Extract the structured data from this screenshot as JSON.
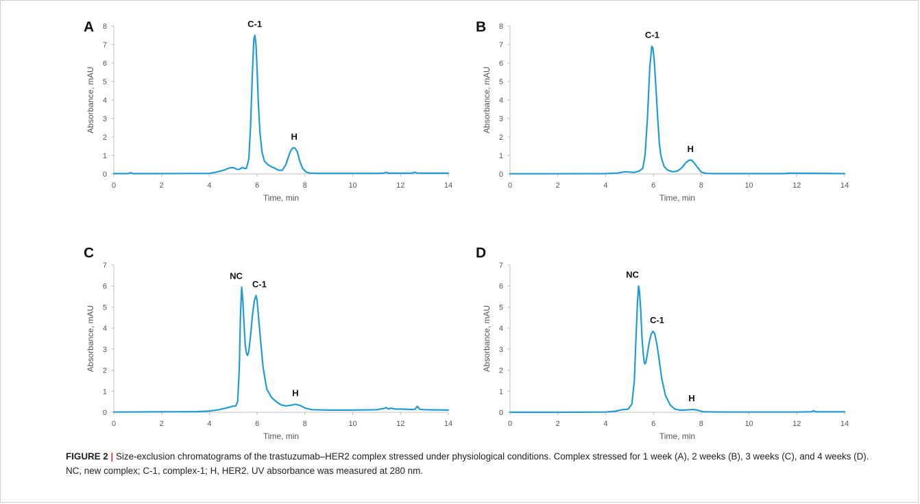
{
  "colors": {
    "trace": "#1f9bd7",
    "axis": "#bfbfbf",
    "text": "#111111",
    "tick": "#555555"
  },
  "caption": {
    "label": "FIGURE 2",
    "separator": "|",
    "text": " Size-exclusion chromatograms of the trastuzumab–HER2 complex stressed under physiological conditions. Complex stressed for 1 week (A), 2 weeks (B), 3 weeks (C), and 4 weeks (D). NC, new complex; C-1, complex-1; H, HER2. UV absorbance was measured at 280 nm."
  },
  "chart_data": [
    {
      "panel": "A",
      "type": "line",
      "xlabel": "Time, min",
      "ylabel": "Absorbance, mAU",
      "xlim": [
        0,
        14
      ],
      "ylim": [
        0,
        8
      ],
      "xticks": [
        0,
        2,
        4,
        6,
        8,
        10,
        12,
        14
      ],
      "yticks": [
        0,
        1,
        2,
        3,
        4,
        5,
        6,
        7,
        8
      ],
      "grid": false,
      "peak_labels": [
        {
          "text": "C-1",
          "x": 5.9,
          "y": 7.5
        },
        {
          "text": "H",
          "x": 7.55,
          "y": 1.4
        }
      ],
      "series": [
        {
          "x": [
            0,
            0.6,
            0.7,
            0.8,
            2,
            4,
            4.3,
            4.6,
            4.85,
            5.0,
            5.15,
            5.25,
            5.38,
            5.45,
            5.55,
            5.65,
            5.72,
            5.8,
            5.86,
            5.9,
            5.95,
            6.0,
            6.05,
            6.12,
            6.2,
            6.3,
            6.45,
            6.6,
            6.75,
            6.9,
            7.05,
            7.2,
            7.3,
            7.4,
            7.5,
            7.58,
            7.68,
            7.78,
            7.9,
            8.05,
            8.2,
            8.5,
            9,
            10,
            11,
            11.3,
            11.4,
            11.5,
            12,
            12.5,
            12.6,
            12.7,
            13,
            14
          ],
          "y": [
            0.02,
            0.02,
            0.07,
            0.02,
            0.02,
            0.03,
            0.1,
            0.2,
            0.33,
            0.35,
            0.25,
            0.25,
            0.35,
            0.3,
            0.3,
            0.8,
            2.5,
            5.5,
            7.3,
            7.5,
            7.0,
            5.6,
            3.8,
            2.2,
            1.2,
            0.7,
            0.5,
            0.38,
            0.3,
            0.2,
            0.2,
            0.5,
            0.9,
            1.25,
            1.42,
            1.4,
            1.2,
            0.7,
            0.3,
            0.1,
            0.05,
            0.03,
            0.03,
            0.03,
            0.03,
            0.05,
            0.08,
            0.04,
            0.04,
            0.05,
            0.09,
            0.05,
            0.04,
            0.04
          ]
        }
      ]
    },
    {
      "panel": "B",
      "type": "line",
      "xlabel": "Time, min",
      "ylabel": "Absorbance, mAU",
      "xlim": [
        0,
        14
      ],
      "ylim": [
        0,
        8
      ],
      "xticks": [
        0,
        2,
        4,
        6,
        8,
        10,
        12,
        14
      ],
      "yticks": [
        0,
        1,
        2,
        3,
        4,
        5,
        6,
        7,
        8
      ],
      "grid": false,
      "peak_labels": [
        {
          "text": "C-1",
          "x": 5.95,
          "y": 6.9
        },
        {
          "text": "H",
          "x": 7.55,
          "y": 0.75
        }
      ],
      "series": [
        {
          "x": [
            0,
            2,
            4,
            4.5,
            4.8,
            5.0,
            5.2,
            5.4,
            5.55,
            5.65,
            5.75,
            5.85,
            5.93,
            5.98,
            6.03,
            6.1,
            6.18,
            6.25,
            6.28,
            6.3,
            6.35,
            6.45,
            6.6,
            6.8,
            7.0,
            7.2,
            7.35,
            7.5,
            7.6,
            7.7,
            7.85,
            8.0,
            8.2,
            8.5,
            10,
            11.5,
            11.6,
            14
          ],
          "y": [
            0.01,
            0.01,
            0.02,
            0.05,
            0.12,
            0.1,
            0.08,
            0.15,
            0.3,
            1.0,
            3.0,
            5.8,
            6.9,
            6.8,
            6.2,
            4.8,
            3.0,
            1.6,
            1.35,
            1.1,
            0.8,
            0.4,
            0.2,
            0.12,
            0.15,
            0.35,
            0.6,
            0.75,
            0.74,
            0.6,
            0.35,
            0.1,
            0.03,
            0.02,
            0.02,
            0.02,
            0.04,
            0.02
          ]
        }
      ]
    },
    {
      "panel": "C",
      "type": "line",
      "xlabel": "Time, min",
      "ylabel": "Absorbance, mAU",
      "xlim": [
        0,
        14
      ],
      "ylim": [
        0,
        7
      ],
      "xticks": [
        0,
        2,
        4,
        6,
        8,
        10,
        12,
        14
      ],
      "yticks": [
        0,
        1,
        2,
        3,
        4,
        5,
        6,
        7
      ],
      "grid": false,
      "peak_labels": [
        {
          "text": "NC",
          "x": 5.35,
          "y": 5.95
        },
        {
          "text": "C-1",
          "x": 5.92,
          "y": 5.55
        },
        {
          "text": "H",
          "x": 7.6,
          "y": 0.38
        }
      ],
      "series": [
        {
          "x": [
            0,
            2,
            3.5,
            4.0,
            4.4,
            4.7,
            4.95,
            5.1,
            5.18,
            5.25,
            5.3,
            5.35,
            5.4,
            5.45,
            5.5,
            5.55,
            5.6,
            5.65,
            5.72,
            5.8,
            5.88,
            5.95,
            6.0,
            6.05,
            6.15,
            6.25,
            6.4,
            6.6,
            6.8,
            7.0,
            7.2,
            7.4,
            7.6,
            7.8,
            8.0,
            8.3,
            9,
            10,
            11,
            11.3,
            11.4,
            11.5,
            11.6,
            11.7,
            11.8,
            12,
            12.5,
            12.6,
            12.7,
            12.8,
            13,
            14
          ],
          "y": [
            0.01,
            0.02,
            0.03,
            0.06,
            0.12,
            0.2,
            0.28,
            0.3,
            0.5,
            2.0,
            4.5,
            5.95,
            5.3,
            4.2,
            3.2,
            2.8,
            2.7,
            2.9,
            3.6,
            4.6,
            5.3,
            5.55,
            5.3,
            4.6,
            3.3,
            2.1,
            1.1,
            0.7,
            0.5,
            0.35,
            0.3,
            0.33,
            0.38,
            0.32,
            0.2,
            0.12,
            0.1,
            0.1,
            0.12,
            0.18,
            0.22,
            0.15,
            0.2,
            0.17,
            0.15,
            0.15,
            0.13,
            0.14,
            0.28,
            0.14,
            0.12,
            0.1
          ]
        }
      ]
    },
    {
      "panel": "D",
      "type": "line",
      "xlabel": "Time, min",
      "ylabel": "Absorbance, mAU",
      "xlim": [
        0,
        14
      ],
      "ylim": [
        0,
        7
      ],
      "xticks": [
        0,
        2,
        4,
        6,
        8,
        10,
        12,
        14
      ],
      "yticks": [
        0,
        1,
        2,
        3,
        4,
        5,
        6,
        7
      ],
      "grid": false,
      "peak_labels": [
        {
          "text": "NC",
          "x": 5.35,
          "y": 6.0
        },
        {
          "text": "C-1",
          "x": 5.98,
          "y": 3.85
        },
        {
          "text": "H",
          "x": 7.6,
          "y": 0.13
        }
      ],
      "series": [
        {
          "x": [
            0,
            2,
            4,
            4.4,
            4.7,
            4.95,
            5.1,
            5.2,
            5.27,
            5.33,
            5.38,
            5.42,
            5.47,
            5.52,
            5.58,
            5.63,
            5.68,
            5.75,
            5.82,
            5.9,
            5.98,
            6.05,
            6.15,
            6.25,
            6.35,
            6.5,
            6.7,
            6.9,
            7.1,
            7.3,
            7.5,
            7.7,
            7.9,
            8.1,
            9,
            10,
            12,
            12.6,
            12.7,
            12.8,
            14
          ],
          "y": [
            0.0,
            0.0,
            0.01,
            0.05,
            0.12,
            0.15,
            0.4,
            1.5,
            3.5,
            5.2,
            6.0,
            5.7,
            4.8,
            3.6,
            2.7,
            2.3,
            2.35,
            2.8,
            3.3,
            3.7,
            3.85,
            3.75,
            3.2,
            2.4,
            1.6,
            0.8,
            0.35,
            0.15,
            0.1,
            0.1,
            0.12,
            0.13,
            0.08,
            0.02,
            0.01,
            0.01,
            0.01,
            0.02,
            0.07,
            0.02,
            0.02
          ]
        }
      ]
    }
  ]
}
